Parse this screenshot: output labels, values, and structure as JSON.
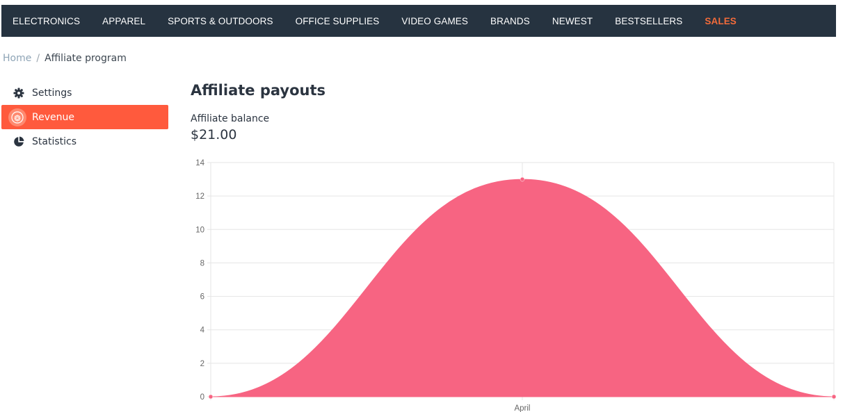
{
  "topnav": {
    "items": [
      "ELECTRONICS",
      "APPAREL",
      "SPORTS & OUTDOORS",
      "OFFICE SUPPLIES",
      "VIDEO GAMES",
      "BRANDS",
      "NEWEST",
      "BESTSELLERS"
    ],
    "sales_label": "SALES",
    "sales_color": "#f26b3a"
  },
  "breadcrumb": {
    "home": "Home",
    "separator": "/",
    "current": "Affiliate program"
  },
  "sidebar": {
    "items": [
      {
        "label": "Settings",
        "icon": "gear-icon"
      },
      {
        "label": "Revenue",
        "icon": "revenue-icon",
        "active": true
      },
      {
        "label": "Statistics",
        "icon": "pie-chart-icon"
      }
    ],
    "active_color": "#ff5a3d"
  },
  "main": {
    "title": "Affiliate payouts",
    "balance_label": "Affiliate balance",
    "balance_value": "$21.00"
  },
  "chart_data": {
    "type": "area",
    "categories": [
      "",
      "April",
      ""
    ],
    "values": [
      0,
      13,
      0
    ],
    "ylim": [
      0,
      14
    ],
    "yticks": [
      0,
      2,
      4,
      6,
      8,
      10,
      12,
      14
    ],
    "grid": true,
    "fill_color": "#f76482",
    "xlabel": "",
    "ylabel": ""
  }
}
